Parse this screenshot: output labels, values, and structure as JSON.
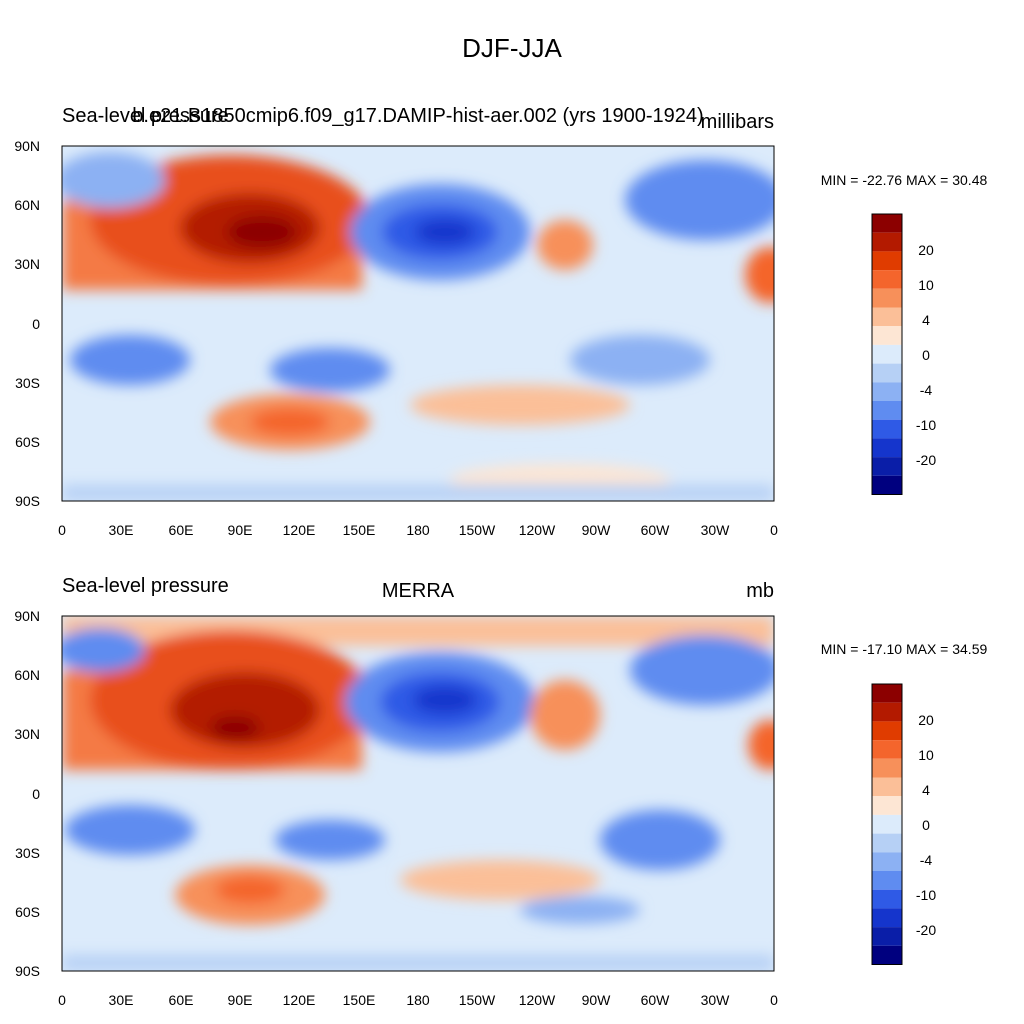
{
  "figure_title": "DJF-JJA",
  "panels": [
    {
      "left_title": "Sea-level pressure",
      "center_title": "b.e21.B1850cmip6.f09_g17.DAMIP-hist-aer.002 (yrs 1900-1924)",
      "right_title": "millibars",
      "stats": "MIN = -22.76 MAX =  30.48"
    },
    {
      "left_title": "Sea-level pressure",
      "center_title": "MERRA",
      "right_title": "mb",
      "stats": "MIN = -17.10 MAX =  34.59"
    }
  ],
  "lon_labels": [
    "0",
    "30E",
    "60E",
    "90E",
    "120E",
    "150E",
    "180",
    "150W",
    "120W",
    "90W",
    "60W",
    "30W",
    "0"
  ],
  "lat_labels": [
    "90N",
    "60N",
    "30N",
    "0",
    "30S",
    "60S",
    "90S"
  ],
  "colorbar": {
    "labels": [
      "20",
      "10",
      "4",
      "0",
      "-4",
      "-10",
      "-20"
    ],
    "colors": [
      "#8c0000",
      "#b31a00",
      "#e03c00",
      "#f4652c",
      "#f7905a",
      "#fbbf98",
      "#fde6d4",
      "#dcebfb",
      "#b6d0f5",
      "#8cb1f3",
      "#5f8cf0",
      "#2f5ae6",
      "#1535cc",
      "#0a1ea8",
      "#00007f"
    ]
  },
  "legend": {
    "strong_high": "#8c0000",
    "mid_high": "#e65a28",
    "weak_high": "#fbd0b4",
    "neutral_low": "#dcebfb",
    "mid_low": "#7fa6f2",
    "strong_low": "#1535cc"
  }
}
